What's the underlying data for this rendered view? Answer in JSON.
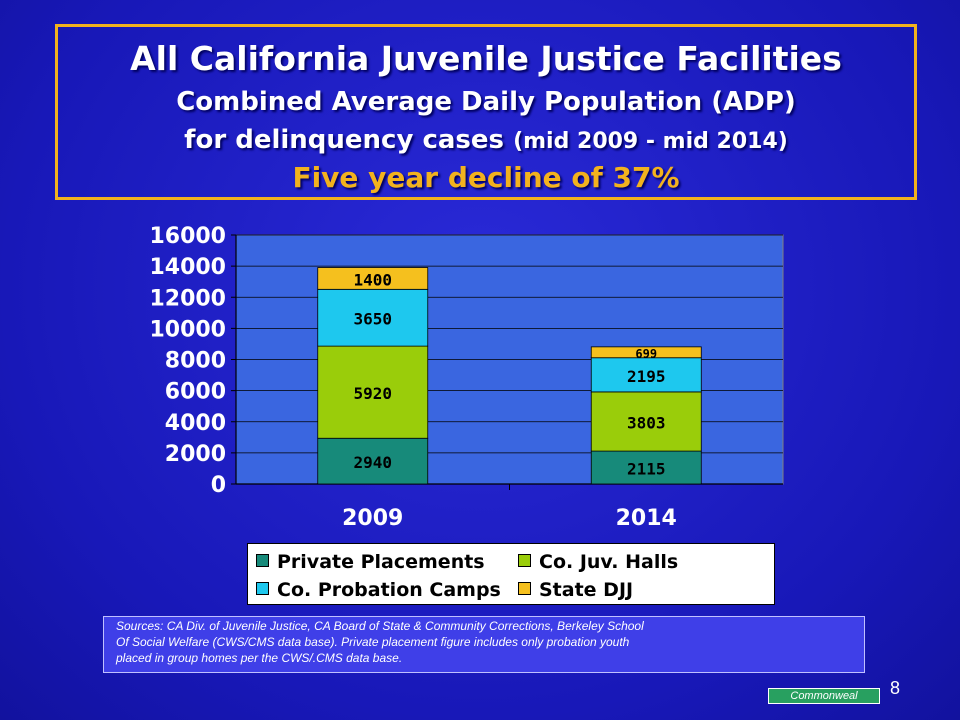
{
  "title": {
    "line1": "All California Juvenile Justice Facilities",
    "line2": "Combined Average Daily Population (ADP)",
    "line3_main": "for delinquency cases",
    "line3_small": "(mid 2009 - mid 2014)",
    "line4": "Five year decline of 37%"
  },
  "chart_data": {
    "type": "bar",
    "stacked": true,
    "categories": [
      "2009",
      "2014"
    ],
    "series": [
      {
        "name": "Private Placements",
        "values": [
          2940,
          2115
        ],
        "color": "#178a7a"
      },
      {
        "name": "Co. Juv. Halls",
        "values": [
          5920,
          3803
        ],
        "color": "#9acd0a"
      },
      {
        "name": "Co. Probation Camps",
        "values": [
          3650,
          2195
        ],
        "color": "#1ec8ee"
      },
      {
        "name": "State DJJ",
        "values": [
          1400,
          699
        ],
        "color": "#f5c01e"
      }
    ],
    "ylim": [
      0,
      16000
    ],
    "yticks": [
      "0",
      "2000",
      "4000",
      "6000",
      "8000",
      "10000",
      "12000",
      "14000",
      "16000"
    ],
    "grid": true,
    "legend_position": "bottom",
    "legend": [
      [
        "Private Placements",
        "Co. Juv. Halls"
      ],
      [
        "Co. Probation Camps",
        "State DJJ"
      ]
    ]
  },
  "sources": {
    "line1": "Sources: CA Div. of Juvenile Justice, CA Board of State & Community Corrections, Berkeley School",
    "line2": "Of Social Welfare (CWS/CMS data base).  Private placement figure includes only  probation youth",
    "line3": "placed in group homes per the CWS/.CMS data base."
  },
  "brand": "Commonweal",
  "page_number": "8"
}
